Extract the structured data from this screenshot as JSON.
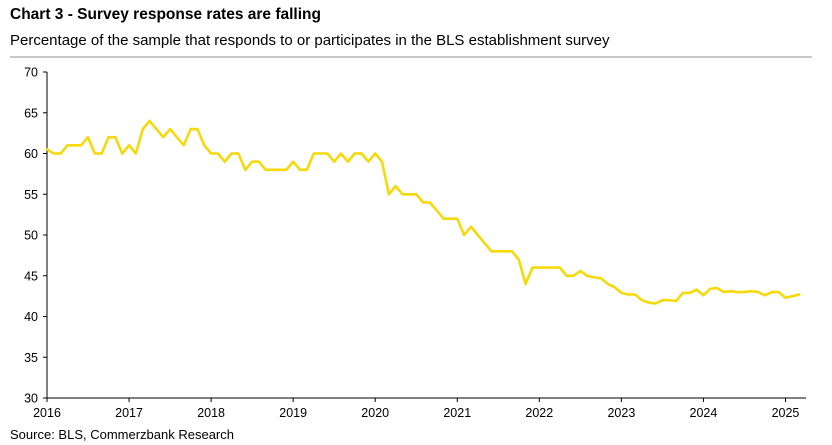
{
  "header": {
    "title": "Chart 3 - Survey response rates are falling",
    "subtitle": "Percentage of the sample that responds to or participates in the BLS establishment survey"
  },
  "footer": {
    "source": "Source: BLS, Commerzbank Research"
  },
  "colors": {
    "series": "#f5d90a",
    "axis": "#000000",
    "rule": "#c8c8c8"
  },
  "chart_data": {
    "type": "line",
    "title": "Chart 3 - Survey response rates are falling",
    "subtitle": "Percentage of the sample that responds to or participates in the BLS establishment survey",
    "xlabel": "",
    "ylabel": "",
    "xlim": [
      2016,
      2025.25
    ],
    "ylim": [
      30,
      70
    ],
    "yticks": [
      30,
      35,
      40,
      45,
      50,
      55,
      60,
      65,
      70
    ],
    "xticks": [
      "2016",
      "2017",
      "2018",
      "2019",
      "2020",
      "2021",
      "2022",
      "2023",
      "2024",
      "2025"
    ],
    "grid": false,
    "legend": "none",
    "series": [
      {
        "color": "#f5d90a",
        "x": [
          2016.0,
          2016.083,
          2016.167,
          2016.25,
          2016.333,
          2016.417,
          2016.5,
          2016.583,
          2016.667,
          2016.75,
          2016.833,
          2016.917,
          2017.0,
          2017.083,
          2017.167,
          2017.25,
          2017.333,
          2017.417,
          2017.5,
          2017.583,
          2017.667,
          2017.75,
          2017.833,
          2017.917,
          2018.0,
          2018.083,
          2018.167,
          2018.25,
          2018.333,
          2018.417,
          2018.5,
          2018.583,
          2018.667,
          2018.75,
          2018.833,
          2018.917,
          2019.0,
          2019.083,
          2019.167,
          2019.25,
          2019.333,
          2019.417,
          2019.5,
          2019.583,
          2019.667,
          2019.75,
          2019.833,
          2019.917,
          2020.0,
          2020.083,
          2020.167,
          2020.25,
          2020.333,
          2020.417,
          2020.5,
          2020.583,
          2020.667,
          2020.75,
          2020.833,
          2020.917,
          2021.0,
          2021.083,
          2021.167,
          2021.25,
          2021.333,
          2021.417,
          2021.5,
          2021.583,
          2021.667,
          2021.75,
          2021.833,
          2021.917,
          2022.0,
          2022.083,
          2022.167,
          2022.25,
          2022.333,
          2022.417,
          2022.5,
          2022.583,
          2022.667,
          2022.75,
          2022.833,
          2022.917,
          2023.0,
          2023.083,
          2023.167,
          2023.25,
          2023.333,
          2023.417,
          2023.5,
          2023.583,
          2023.667,
          2023.75,
          2023.833,
          2023.917,
          2024.0,
          2024.083,
          2024.167,
          2024.25,
          2024.333,
          2024.417,
          2024.5,
          2024.583,
          2024.667,
          2024.75,
          2024.833,
          2024.917,
          2025.0,
          2025.083,
          2025.167
        ],
        "y": [
          60.5,
          60,
          60,
          61,
          61,
          61,
          62,
          60,
          60,
          62,
          62,
          60,
          61,
          60,
          63,
          64,
          63,
          62,
          63,
          62,
          61,
          63,
          63,
          61,
          60,
          60,
          59,
          60,
          60,
          58,
          59,
          59,
          58,
          58,
          58,
          58,
          59,
          58,
          58,
          60,
          60,
          60,
          59,
          60,
          59,
          60,
          60,
          59,
          60,
          59,
          55,
          56,
          55,
          55,
          55,
          54,
          54,
          53,
          52,
          52,
          52,
          50,
          51,
          50,
          49,
          48,
          48,
          48,
          48,
          47,
          44,
          46,
          46,
          46,
          46,
          46,
          45,
          45,
          45.6,
          45,
          44.8,
          44.7,
          44,
          43.6,
          42.9,
          42.7,
          42.7,
          42,
          41.7,
          41.6,
          42,
          42,
          41.9,
          42.9,
          42.9,
          43.3,
          42.6,
          43.4,
          43.5,
          43,
          43.1,
          43,
          43,
          43.1,
          43,
          42.6,
          43,
          43,
          42.3,
          42.5,
          42.7
        ]
      }
    ]
  }
}
